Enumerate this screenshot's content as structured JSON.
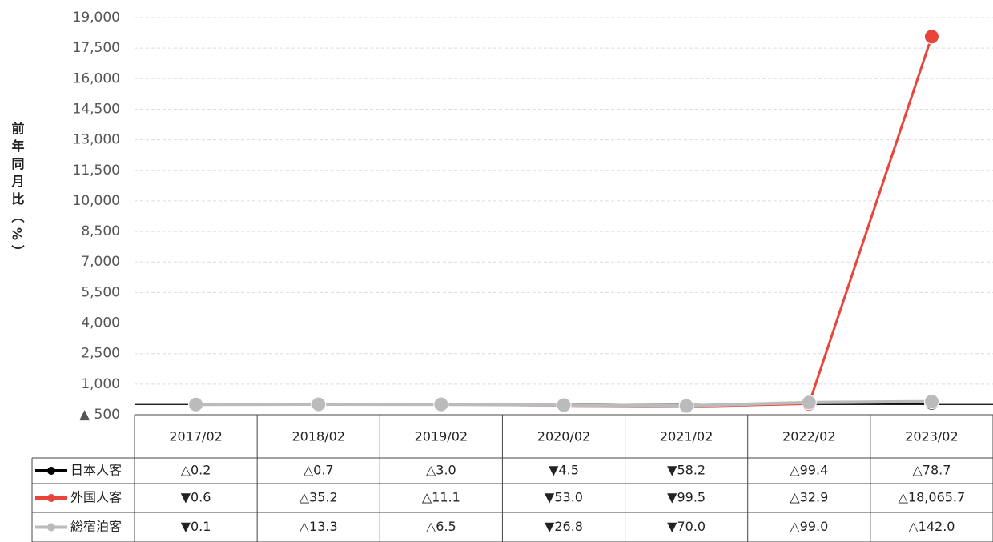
{
  "chart_data": {
    "type": "line",
    "y_label": "前年同月比（%）",
    "categories": [
      "2017/02",
      "2018/02",
      "2019/02",
      "2020/02",
      "2021/02",
      "2022/02",
      "2023/02"
    ],
    "series": [
      {
        "name": "日本人客",
        "color": "#000000",
        "values": [
          0.2,
          0.7,
          3.0,
          -4.5,
          -58.2,
          99.4,
          78.7
        ],
        "value_labels": [
          "△0.2",
          "△0.7",
          "△3.0",
          "▼4.5",
          "▼58.2",
          "△99.4",
          "△78.7"
        ]
      },
      {
        "name": "外国人客",
        "color": "#e8443a",
        "values": [
          -0.6,
          35.2,
          11.1,
          -53.0,
          -99.5,
          32.9,
          18065.7
        ],
        "value_labels": [
          "▼0.6",
          "△35.2",
          "△11.1",
          "▼53.0",
          "▼99.5",
          "△32.9",
          "△18,065.7"
        ]
      },
      {
        "name": "総宿泊客",
        "color": "#bbbbbb",
        "values": [
          -0.1,
          13.3,
          6.5,
          -26.8,
          -70.0,
          99.0,
          142.0
        ],
        "value_labels": [
          "▼0.1",
          "△13.3",
          "△6.5",
          "▼26.8",
          "▼70.0",
          "△99.0",
          "△142.0"
        ]
      }
    ],
    "ylim": [
      -500,
      19000
    ],
    "yticks": [
      {
        "value": -500,
        "label": "▲ 500"
      },
      {
        "value": 1000,
        "label": "1,000"
      },
      {
        "value": 2500,
        "label": "2,500"
      },
      {
        "value": 4000,
        "label": "4,000"
      },
      {
        "value": 5500,
        "label": "5,500"
      },
      {
        "value": 7000,
        "label": "7,000"
      },
      {
        "value": 8500,
        "label": "8,500"
      },
      {
        "value": 10000,
        "label": "10,000"
      },
      {
        "value": 11500,
        "label": "11,500"
      },
      {
        "value": 13000,
        "label": "13,000"
      },
      {
        "value": 14500,
        "label": "14,500"
      },
      {
        "value": 16000,
        "label": "16,000"
      },
      {
        "value": 17500,
        "label": "17,500"
      },
      {
        "value": 19000,
        "label": "19,000"
      }
    ],
    "grid": true
  }
}
